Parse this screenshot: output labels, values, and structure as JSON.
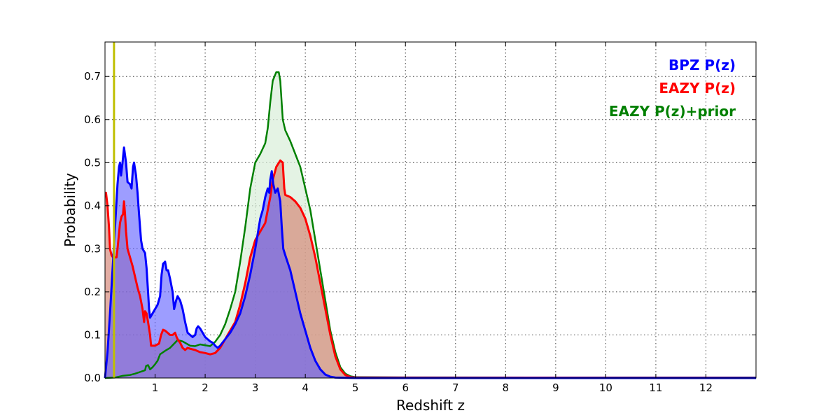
{
  "chart_data": {
    "type": "area",
    "title": "",
    "xlabel": "Redshift z",
    "ylabel": "Probability",
    "xlim": [
      0,
      13
    ],
    "ylim": [
      0,
      0.78
    ],
    "xticks": [
      1,
      2,
      3,
      4,
      5,
      6,
      7,
      8,
      9,
      10,
      11,
      12
    ],
    "yticks": [
      "0.0",
      "0.1",
      "0.2",
      "0.3",
      "0.4",
      "0.5",
      "0.6",
      "0.7"
    ],
    "grid": true,
    "legend_position": "top-right",
    "vertical_line": {
      "x": 0.18,
      "color": "#bfbf00"
    },
    "series": [
      {
        "name": "EAZY P(z)+prior",
        "color": "#008000",
        "fill": "#d8eed8",
        "fill_opacity": 0.7,
        "stroke_width": 2.5,
        "points": [
          [
            0.0,
            0.0
          ],
          [
            0.2,
            0.001
          ],
          [
            0.35,
            0.005
          ],
          [
            0.5,
            0.007
          ],
          [
            0.6,
            0.01
          ],
          [
            0.7,
            0.014
          ],
          [
            0.8,
            0.018
          ],
          [
            0.82,
            0.028
          ],
          [
            0.86,
            0.03
          ],
          [
            0.9,
            0.02
          ],
          [
            0.95,
            0.025
          ],
          [
            1.0,
            0.032
          ],
          [
            1.05,
            0.04
          ],
          [
            1.1,
            0.055
          ],
          [
            1.2,
            0.063
          ],
          [
            1.3,
            0.07
          ],
          [
            1.4,
            0.082
          ],
          [
            1.45,
            0.088
          ],
          [
            1.55,
            0.085
          ],
          [
            1.7,
            0.075
          ],
          [
            1.8,
            0.074
          ],
          [
            1.9,
            0.078
          ],
          [
            2.0,
            0.076
          ],
          [
            2.1,
            0.074
          ],
          [
            2.2,
            0.084
          ],
          [
            2.3,
            0.1
          ],
          [
            2.4,
            0.125
          ],
          [
            2.5,
            0.16
          ],
          [
            2.6,
            0.2
          ],
          [
            2.7,
            0.27
          ],
          [
            2.8,
            0.35
          ],
          [
            2.9,
            0.44
          ],
          [
            3.0,
            0.5
          ],
          [
            3.1,
            0.52
          ],
          [
            3.2,
            0.545
          ],
          [
            3.25,
            0.58
          ],
          [
            3.3,
            0.64
          ],
          [
            3.35,
            0.69
          ],
          [
            3.42,
            0.71
          ],
          [
            3.47,
            0.71
          ],
          [
            3.5,
            0.69
          ],
          [
            3.55,
            0.6
          ],
          [
            3.6,
            0.575
          ],
          [
            3.7,
            0.55
          ],
          [
            3.8,
            0.52
          ],
          [
            3.9,
            0.49
          ],
          [
            4.0,
            0.44
          ],
          [
            4.1,
            0.39
          ],
          [
            4.2,
            0.32
          ],
          [
            4.3,
            0.25
          ],
          [
            4.4,
            0.18
          ],
          [
            4.5,
            0.11
          ],
          [
            4.6,
            0.06
          ],
          [
            4.7,
            0.025
          ],
          [
            4.8,
            0.01
          ],
          [
            4.9,
            0.004
          ],
          [
            5.0,
            0.002
          ],
          [
            6.0,
            0.0015
          ],
          [
            13.0,
            0.001
          ]
        ]
      },
      {
        "name": "EAZY P(z)",
        "color": "#ff0000",
        "fill": "#d27a6a",
        "fill_opacity": 0.62,
        "stroke_width": 3,
        "points": [
          [
            0.0,
            0.43
          ],
          [
            0.02,
            0.43
          ],
          [
            0.05,
            0.4
          ],
          [
            0.08,
            0.35
          ],
          [
            0.1,
            0.3
          ],
          [
            0.13,
            0.285
          ],
          [
            0.16,
            0.28
          ],
          [
            0.2,
            0.28
          ],
          [
            0.23,
            0.28
          ],
          [
            0.25,
            0.3
          ],
          [
            0.3,
            0.36
          ],
          [
            0.33,
            0.375
          ],
          [
            0.36,
            0.38
          ],
          [
            0.38,
            0.41
          ],
          [
            0.4,
            0.38
          ],
          [
            0.42,
            0.34
          ],
          [
            0.45,
            0.3
          ],
          [
            0.5,
            0.28
          ],
          [
            0.55,
            0.26
          ],
          [
            0.6,
            0.235
          ],
          [
            0.65,
            0.21
          ],
          [
            0.7,
            0.19
          ],
          [
            0.75,
            0.16
          ],
          [
            0.78,
            0.13
          ],
          [
            0.8,
            0.155
          ],
          [
            0.83,
            0.15
          ],
          [
            0.86,
            0.13
          ],
          [
            0.9,
            0.1
          ],
          [
            0.92,
            0.075
          ],
          [
            1.0,
            0.075
          ],
          [
            1.08,
            0.08
          ],
          [
            1.12,
            0.1
          ],
          [
            1.16,
            0.112
          ],
          [
            1.2,
            0.11
          ],
          [
            1.25,
            0.105
          ],
          [
            1.3,
            0.1
          ],
          [
            1.35,
            0.1
          ],
          [
            1.4,
            0.105
          ],
          [
            1.43,
            0.095
          ],
          [
            1.46,
            0.088
          ],
          [
            1.5,
            0.082
          ],
          [
            1.55,
            0.07
          ],
          [
            1.6,
            0.065
          ],
          [
            1.65,
            0.07
          ],
          [
            1.7,
            0.068
          ],
          [
            1.8,
            0.065
          ],
          [
            1.9,
            0.06
          ],
          [
            2.0,
            0.058
          ],
          [
            2.1,
            0.055
          ],
          [
            2.2,
            0.058
          ],
          [
            2.3,
            0.07
          ],
          [
            2.4,
            0.09
          ],
          [
            2.5,
            0.11
          ],
          [
            2.6,
            0.13
          ],
          [
            2.7,
            0.17
          ],
          [
            2.8,
            0.22
          ],
          [
            2.9,
            0.28
          ],
          [
            3.0,
            0.32
          ],
          [
            3.1,
            0.34
          ],
          [
            3.2,
            0.36
          ],
          [
            3.3,
            0.42
          ],
          [
            3.35,
            0.46
          ],
          [
            3.42,
            0.49
          ],
          [
            3.5,
            0.505
          ],
          [
            3.55,
            0.5
          ],
          [
            3.58,
            0.44
          ],
          [
            3.6,
            0.425
          ],
          [
            3.7,
            0.42
          ],
          [
            3.8,
            0.41
          ],
          [
            3.9,
            0.395
          ],
          [
            4.0,
            0.37
          ],
          [
            4.1,
            0.33
          ],
          [
            4.2,
            0.28
          ],
          [
            4.3,
            0.22
          ],
          [
            4.4,
            0.16
          ],
          [
            4.5,
            0.1
          ],
          [
            4.6,
            0.05
          ],
          [
            4.7,
            0.02
          ],
          [
            4.8,
            0.007
          ],
          [
            4.9,
            0.002
          ],
          [
            5.0,
            0.001
          ],
          [
            13.0,
            0.0005
          ]
        ]
      },
      {
        "name": "BPZ P(z)",
        "color": "#0000ff",
        "fill": "#5c5cff",
        "fill_opacity": 0.6,
        "stroke_width": 3,
        "points": [
          [
            0.0,
            0.0
          ],
          [
            0.05,
            0.06
          ],
          [
            0.1,
            0.15
          ],
          [
            0.15,
            0.25
          ],
          [
            0.2,
            0.35
          ],
          [
            0.25,
            0.45
          ],
          [
            0.28,
            0.49
          ],
          [
            0.3,
            0.5
          ],
          [
            0.32,
            0.47
          ],
          [
            0.35,
            0.5
          ],
          [
            0.38,
            0.535
          ],
          [
            0.42,
            0.5
          ],
          [
            0.45,
            0.455
          ],
          [
            0.5,
            0.45
          ],
          [
            0.53,
            0.44
          ],
          [
            0.56,
            0.49
          ],
          [
            0.58,
            0.5
          ],
          [
            0.62,
            0.47
          ],
          [
            0.65,
            0.43
          ],
          [
            0.68,
            0.38
          ],
          [
            0.72,
            0.32
          ],
          [
            0.75,
            0.3
          ],
          [
            0.8,
            0.29
          ],
          [
            0.83,
            0.255
          ],
          [
            0.86,
            0.2
          ],
          [
            0.88,
            0.16
          ],
          [
            0.9,
            0.14
          ],
          [
            0.95,
            0.15
          ],
          [
            1.0,
            0.16
          ],
          [
            1.05,
            0.17
          ],
          [
            1.1,
            0.19
          ],
          [
            1.13,
            0.24
          ],
          [
            1.16,
            0.265
          ],
          [
            1.2,
            0.27
          ],
          [
            1.23,
            0.25
          ],
          [
            1.26,
            0.25
          ],
          [
            1.3,
            0.23
          ],
          [
            1.35,
            0.2
          ],
          [
            1.38,
            0.16
          ],
          [
            1.42,
            0.18
          ],
          [
            1.45,
            0.19
          ],
          [
            1.5,
            0.18
          ],
          [
            1.55,
            0.16
          ],
          [
            1.6,
            0.13
          ],
          [
            1.65,
            0.105
          ],
          [
            1.7,
            0.1
          ],
          [
            1.75,
            0.095
          ],
          [
            1.8,
            0.1
          ],
          [
            1.83,
            0.115
          ],
          [
            1.86,
            0.12
          ],
          [
            1.9,
            0.115
          ],
          [
            1.95,
            0.105
          ],
          [
            2.0,
            0.095
          ],
          [
            2.05,
            0.09
          ],
          [
            2.1,
            0.085
          ],
          [
            2.15,
            0.082
          ],
          [
            2.2,
            0.075
          ],
          [
            2.25,
            0.07
          ],
          [
            2.3,
            0.075
          ],
          [
            2.4,
            0.09
          ],
          [
            2.5,
            0.105
          ],
          [
            2.6,
            0.125
          ],
          [
            2.7,
            0.15
          ],
          [
            2.8,
            0.19
          ],
          [
            2.9,
            0.24
          ],
          [
            3.0,
            0.3
          ],
          [
            3.1,
            0.37
          ],
          [
            3.15,
            0.39
          ],
          [
            3.2,
            0.42
          ],
          [
            3.25,
            0.44
          ],
          [
            3.28,
            0.43
          ],
          [
            3.3,
            0.46
          ],
          [
            3.33,
            0.48
          ],
          [
            3.36,
            0.45
          ],
          [
            3.4,
            0.43
          ],
          [
            3.45,
            0.44
          ],
          [
            3.5,
            0.41
          ],
          [
            3.53,
            0.35
          ],
          [
            3.56,
            0.3
          ],
          [
            3.6,
            0.285
          ],
          [
            3.7,
            0.25
          ],
          [
            3.8,
            0.2
          ],
          [
            3.9,
            0.15
          ],
          [
            4.0,
            0.11
          ],
          [
            4.1,
            0.07
          ],
          [
            4.2,
            0.04
          ],
          [
            4.3,
            0.02
          ],
          [
            4.4,
            0.008
          ],
          [
            4.5,
            0.003
          ],
          [
            4.6,
            0.001
          ],
          [
            5.0,
            0.0
          ],
          [
            13.0,
            0.0
          ]
        ]
      }
    ],
    "legend": [
      {
        "label": "BPZ P(z)",
        "color": "#0000ff"
      },
      {
        "label": "EAZY P(z)",
        "color": "#ff0000"
      },
      {
        "label": "EAZY P(z)+prior",
        "color": "#008000"
      }
    ]
  }
}
